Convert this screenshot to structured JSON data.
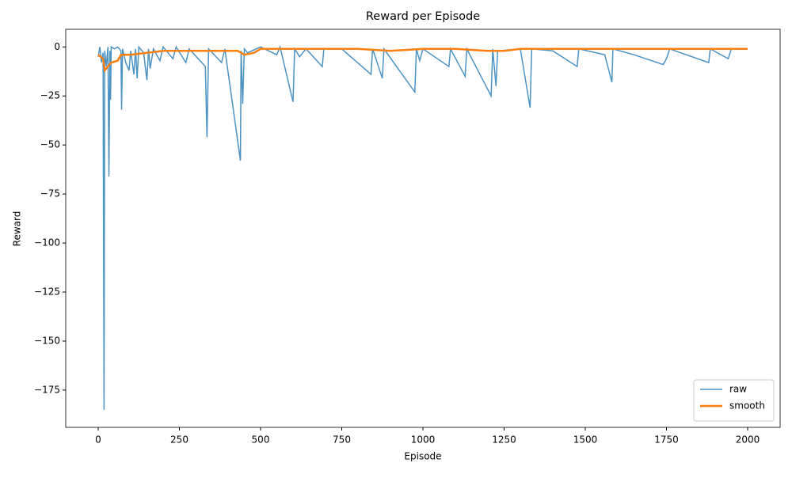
{
  "chart_data": {
    "type": "line",
    "title": "Reward per Episode",
    "xlabel": "Episode",
    "ylabel": "Reward",
    "xlim": [
      -100,
      2100
    ],
    "ylim": [
      -194,
      9
    ],
    "xticks": [
      0,
      250,
      500,
      750,
      1000,
      1250,
      1500,
      1750,
      2000
    ],
    "yticks": [
      {
        "value": -175,
        "label": "−175"
      },
      {
        "value": -150,
        "label": "−150"
      },
      {
        "value": -125,
        "label": "−125"
      },
      {
        "value": -100,
        "label": "−100"
      },
      {
        "value": -75,
        "label": "−75"
      },
      {
        "value": -50,
        "label": "−50"
      },
      {
        "value": -25,
        "label": "−25"
      },
      0
    ],
    "grid": false,
    "legend": "lower right",
    "series": [
      {
        "name": "raw",
        "color": "#1f77b4",
        "opacity": 0.8,
        "width": 1.5,
        "x": [
          0,
          5,
          10,
          15,
          18,
          20,
          25,
          30,
          33,
          36,
          38,
          40,
          50,
          60,
          70,
          72,
          75,
          85,
          95,
          100,
          110,
          115,
          120,
          125,
          140,
          150,
          155,
          160,
          170,
          190,
          200,
          230,
          240,
          270,
          280,
          330,
          335,
          340,
          380,
          390,
          438,
          440,
          445,
          450,
          460,
          500,
          550,
          560,
          600,
          605,
          620,
          640,
          690,
          695,
          750,
          840,
          845,
          875,
          880,
          975,
          980,
          990,
          1000,
          1080,
          1085,
          1130,
          1135,
          1210,
          1215,
          1225,
          1230,
          1300,
          1330,
          1335,
          1400,
          1475,
          1480,
          1560,
          1582,
          1585,
          1650,
          1740,
          1750,
          1760,
          1880,
          1885,
          1940,
          1950,
          2000
        ],
        "values": [
          -5,
          0,
          -8,
          -3,
          -185,
          -2,
          -10,
          0,
          -66,
          -2,
          -27,
          0,
          -1,
          0,
          -2,
          -32,
          -1,
          -8,
          -12,
          -2,
          -14,
          -1,
          -16,
          0,
          -3,
          -17,
          -1,
          -11,
          -1,
          -7,
          0,
          -6,
          0,
          -8,
          -1,
          -10,
          -46,
          -1,
          -8,
          -1,
          -58,
          -2,
          -29,
          -1,
          -3,
          0,
          -4,
          0,
          -28,
          -1,
          -5,
          -1,
          -10,
          -1,
          -1,
          -14,
          -1,
          -16,
          -1,
          -23,
          -1,
          -7,
          -1,
          -10,
          -1,
          -15,
          -1,
          -25,
          -1,
          -20,
          -2,
          -1,
          -31,
          -1,
          -2,
          -10,
          -1,
          -4,
          -18,
          -1,
          -4,
          -9,
          -6,
          -1,
          -8,
          -1,
          -6,
          -1,
          -1
        ]
      },
      {
        "name": "smooth",
        "color": "#ff7f0e",
        "opacity": 1,
        "width": 2.5,
        "x": [
          0,
          15,
          20,
          30,
          40,
          60,
          70,
          100,
          150,
          200,
          300,
          400,
          430,
          450,
          480,
          500,
          600,
          700,
          800,
          900,
          1000,
          1100,
          1200,
          1250,
          1300,
          1400,
          1500,
          1600,
          1700,
          1800,
          1900,
          2000
        ],
        "values": [
          -4,
          -6,
          -12,
          -10,
          -8,
          -7,
          -4,
          -4,
          -3,
          -2,
          -2,
          -2,
          -2,
          -4,
          -3,
          -1,
          -1,
          -1,
          -1,
          -2,
          -1,
          -1,
          -2,
          -2,
          -1,
          -1,
          -1,
          -1,
          -1,
          -1,
          -1,
          -1
        ]
      }
    ]
  }
}
